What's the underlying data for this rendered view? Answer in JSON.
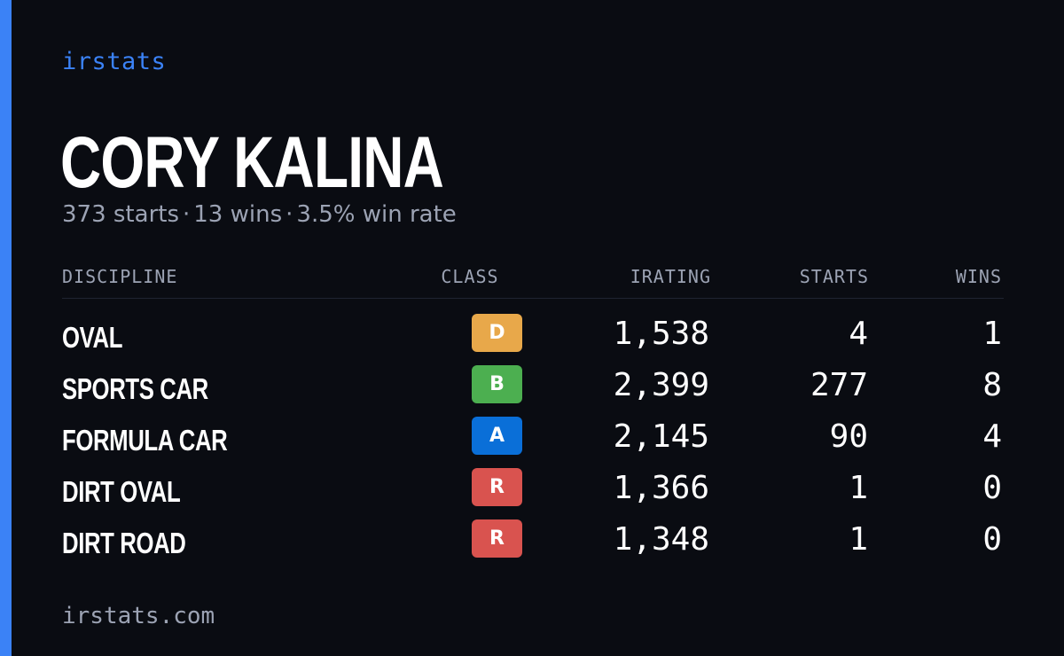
{
  "colors": {
    "background": "#0a0c12",
    "accent": "#3b82f6",
    "text": "#ffffff",
    "muted": "#9ca3b4"
  },
  "brand": "irstats",
  "driver": {
    "name": "CORY KALINA",
    "starts_text": "373 starts",
    "wins_text": "13 wins",
    "win_rate_text": "3.5% win rate",
    "separator": "·"
  },
  "table": {
    "headers": {
      "discipline": "DISCIPLINE",
      "class": "CLASS",
      "irating": "IRATING",
      "starts": "STARTS",
      "wins": "WINS"
    },
    "rows": [
      {
        "discipline": "OVAL",
        "class": "D",
        "class_color": "#e8a84a",
        "irating": "1,538",
        "starts": "4",
        "wins": "1"
      },
      {
        "discipline": "SPORTS CAR",
        "class": "B",
        "class_color": "#4caf50",
        "irating": "2,399",
        "starts": "277",
        "wins": "8"
      },
      {
        "discipline": "FORMULA CAR",
        "class": "A",
        "class_color": "#0a6fd8",
        "irating": "2,145",
        "starts": "90",
        "wins": "4"
      },
      {
        "discipline": "DIRT OVAL",
        "class": "R",
        "class_color": "#d9534f",
        "irating": "1,366",
        "starts": "1",
        "wins": "0"
      },
      {
        "discipline": "DIRT ROAD",
        "class": "R",
        "class_color": "#d9534f",
        "irating": "1,348",
        "starts": "1",
        "wins": "0"
      }
    ]
  },
  "footer": "irstats.com"
}
